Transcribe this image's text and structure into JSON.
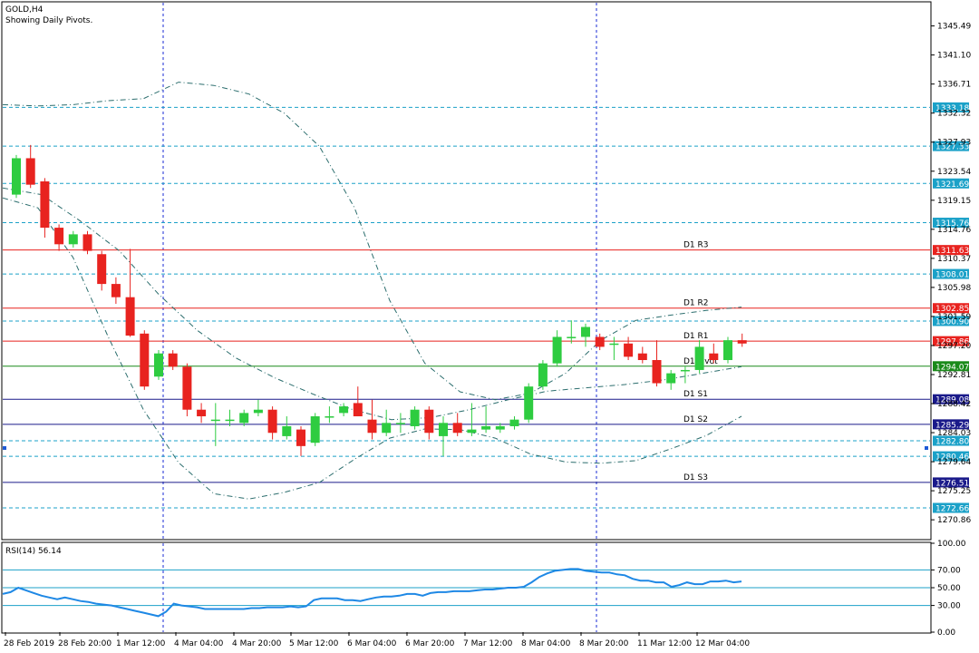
{
  "header": {
    "symbol": "GOLD,H4",
    "subtitle": "Showing Daily Pivots."
  },
  "rsi_label": "RSI(14) 56.14",
  "colors": {
    "bull": "#2ecc40",
    "bear": "#e8231f",
    "resistance": "#e8231f",
    "pivot": "#1a8a1a",
    "support": "#1a1a8a",
    "dotted_level": "#1ba1c8",
    "tag_cyan": "#1ba1c8",
    "rsi": "#1e88e5",
    "band": "#2c6e6e"
  },
  "chart_data": {
    "type": "candlestick",
    "ylim": [
      1268,
      1349
    ],
    "y_ticks": [
      "1345.49",
      "1341.10",
      "1336.71",
      "1332.32",
      "1327.93",
      "1323.54",
      "1319.15",
      "1314.76",
      "1310.37",
      "1305.98",
      "1301.59",
      "1297.20",
      "1292.81",
      "1288.42",
      "1284.03",
      "1279.64",
      "1275.25",
      "1270.86"
    ],
    "x_labels": [
      "28 Feb 2019",
      "28 Feb 20:00",
      "1 Mar 12:00",
      "4 Mar 04:00",
      "4 Mar 20:00",
      "5 Mar 12:00",
      "6 Mar 04:00",
      "6 Mar 20:00",
      "7 Mar 12:00",
      "8 Mar 04:00",
      "8 Mar 20:00",
      "11 Mar 12:00",
      "12 Mar 04:00"
    ],
    "candles": [
      {
        "o": 1320.0,
        "h": 1326.0,
        "l": 1319.5,
        "c": 1325.5
      },
      {
        "o": 1325.5,
        "h": 1327.5,
        "l": 1321.0,
        "c": 1321.5
      },
      {
        "o": 1322.0,
        "h": 1322.5,
        "l": 1313.5,
        "c": 1315.0
      },
      {
        "o": 1315.0,
        "h": 1315.5,
        "l": 1311.5,
        "c": 1312.5
      },
      {
        "o": 1312.5,
        "h": 1314.5,
        "l": 1312.0,
        "c": 1314.0
      },
      {
        "o": 1314.0,
        "h": 1314.5,
        "l": 1311.0,
        "c": 1311.5
      },
      {
        "o": 1311.0,
        "h": 1311.5,
        "l": 1305.5,
        "c": 1306.5
      },
      {
        "o": 1306.5,
        "h": 1307.5,
        "l": 1303.5,
        "c": 1304.5
      },
      {
        "o": 1304.5,
        "h": 1311.8,
        "l": 1298.5,
        "c": 1298.7
      },
      {
        "o": 1299.0,
        "h": 1299.5,
        "l": 1290.5,
        "c": 1291.0
      },
      {
        "o": 1292.5,
        "h": 1296.5,
        "l": 1292.0,
        "c": 1296.0
      },
      {
        "o": 1296.0,
        "h": 1296.5,
        "l": 1293.5,
        "c": 1294.0
      },
      {
        "o": 1294.0,
        "h": 1294.5,
        "l": 1286.5,
        "c": 1287.5
      },
      {
        "o": 1287.5,
        "h": 1288.5,
        "l": 1285.5,
        "c": 1286.5
      },
      {
        "o": 1286.0,
        "h": 1288.5,
        "l": 1282.0,
        "c": 1286.0
      },
      {
        "o": 1286.0,
        "h": 1287.5,
        "l": 1285.0,
        "c": 1286.0
      },
      {
        "o": 1285.5,
        "h": 1287.5,
        "l": 1285.0,
        "c": 1287.0
      },
      {
        "o": 1287.0,
        "h": 1289.0,
        "l": 1286.5,
        "c": 1287.5
      },
      {
        "o": 1287.5,
        "h": 1288.0,
        "l": 1283.0,
        "c": 1284.0
      },
      {
        "o": 1283.5,
        "h": 1286.5,
        "l": 1283.0,
        "c": 1285.0
      },
      {
        "o": 1284.5,
        "h": 1285.0,
        "l": 1280.5,
        "c": 1282.0
      },
      {
        "o": 1282.5,
        "h": 1287.0,
        "l": 1282.0,
        "c": 1286.5
      },
      {
        "o": 1286.5,
        "h": 1288.0,
        "l": 1285.5,
        "c": 1286.5
      },
      {
        "o": 1287.0,
        "h": 1288.5,
        "l": 1286.5,
        "c": 1288.0
      },
      {
        "o": 1288.5,
        "h": 1291.0,
        "l": 1286.5,
        "c": 1286.5
      },
      {
        "o": 1286.0,
        "h": 1289.0,
        "l": 1283.0,
        "c": 1284.0
      },
      {
        "o": 1284.0,
        "h": 1287.5,
        "l": 1283.5,
        "c": 1285.5
      },
      {
        "o": 1285.5,
        "h": 1287.0,
        "l": 1284.0,
        "c": 1285.5
      },
      {
        "o": 1285.0,
        "h": 1288.0,
        "l": 1284.5,
        "c": 1287.5
      },
      {
        "o": 1287.5,
        "h": 1288.0,
        "l": 1283.0,
        "c": 1284.0
      },
      {
        "o": 1283.5,
        "h": 1286.5,
        "l": 1280.5,
        "c": 1285.5
      },
      {
        "o": 1285.5,
        "h": 1287.0,
        "l": 1283.5,
        "c": 1284.0
      },
      {
        "o": 1284.0,
        "h": 1288.5,
        "l": 1283.5,
        "c": 1284.5
      },
      {
        "o": 1284.5,
        "h": 1288.0,
        "l": 1284.0,
        "c": 1285.0
      },
      {
        "o": 1284.5,
        "h": 1285.5,
        "l": 1284.0,
        "c": 1285.0
      },
      {
        "o": 1285.0,
        "h": 1286.5,
        "l": 1284.5,
        "c": 1286.0
      },
      {
        "o": 1286.0,
        "h": 1291.5,
        "l": 1285.5,
        "c": 1291.0
      },
      {
        "o": 1291.0,
        "h": 1295.0,
        "l": 1290.5,
        "c": 1294.5
      },
      {
        "o": 1294.5,
        "h": 1299.5,
        "l": 1294.0,
        "c": 1298.5
      },
      {
        "o": 1298.5,
        "h": 1301.0,
        "l": 1297.5,
        "c": 1298.5
      },
      {
        "o": 1298.5,
        "h": 1300.5,
        "l": 1297.0,
        "c": 1300.0
      },
      {
        "o": 1298.5,
        "h": 1299.0,
        "l": 1296.5,
        "c": 1297.0
      },
      {
        "o": 1297.5,
        "h": 1298.5,
        "l": 1295.0,
        "c": 1297.5
      },
      {
        "o": 1297.5,
        "h": 1298.5,
        "l": 1295.0,
        "c": 1295.5
      },
      {
        "o": 1296.0,
        "h": 1297.0,
        "l": 1294.5,
        "c": 1295.0
      },
      {
        "o": 1295.0,
        "h": 1298.0,
        "l": 1291.0,
        "c": 1291.5
      },
      {
        "o": 1291.5,
        "h": 1293.5,
        "l": 1290.5,
        "c": 1293.0
      },
      {
        "o": 1293.5,
        "h": 1294.0,
        "l": 1291.5,
        "c": 1293.5
      },
      {
        "o": 1293.5,
        "h": 1298.0,
        "l": 1293.0,
        "c": 1297.0
      },
      {
        "o": 1296.0,
        "h": 1297.5,
        "l": 1294.5,
        "c": 1295.0
      },
      {
        "o": 1295.0,
        "h": 1298.5,
        "l": 1294.5,
        "c": 1298.0
      },
      {
        "o": 1298.0,
        "h": 1299.0,
        "l": 1297.0,
        "c": 1297.5
      }
    ],
    "pivot_levels": [
      {
        "label": "D1 R3",
        "value": 1311.63,
        "kind": "resistance"
      },
      {
        "label": "D1 R2",
        "value": 1302.85,
        "kind": "resistance"
      },
      {
        "label": "D1 R1",
        "value": 1297.86,
        "kind": "resistance"
      },
      {
        "label": "D1 Pivot",
        "value": 1294.07,
        "kind": "pivot"
      },
      {
        "label": "D1 S1",
        "value": 1289.08,
        "kind": "support"
      },
      {
        "label": "D1 S2",
        "value": 1285.29,
        "kind": "support"
      },
      {
        "label": "D1 S3",
        "value": 1276.51,
        "kind": "support"
      }
    ],
    "dotted_levels": [
      1333.18,
      1327.33,
      1321.69,
      1315.76,
      1308.01,
      1300.9,
      1282.8,
      1280.46,
      1272.66
    ],
    "price_tags": [
      {
        "text": "1333.18",
        "value": 1333.18,
        "kind": "level"
      },
      {
        "text": "1327.33",
        "value": 1327.33,
        "kind": "level"
      },
      {
        "text": "1321.69",
        "value": 1321.69,
        "kind": "level"
      },
      {
        "text": "1315.76",
        "value": 1315.76,
        "kind": "level"
      },
      {
        "text": "1311.63",
        "value": 1311.63,
        "kind": "resistance"
      },
      {
        "text": "1308.01",
        "value": 1308.01,
        "kind": "level"
      },
      {
        "text": "1302.85",
        "value": 1302.85,
        "kind": "resistance"
      },
      {
        "text": "1300.90",
        "value": 1300.9,
        "kind": "level"
      },
      {
        "text": "1297.86",
        "value": 1297.86,
        "kind": "resistance"
      },
      {
        "text": "1294.07",
        "value": 1294.07,
        "kind": "pivot"
      },
      {
        "text": "1289.08",
        "value": 1289.08,
        "kind": "support"
      },
      {
        "text": "1285.29",
        "value": 1285.29,
        "kind": "support"
      },
      {
        "text": "1282.80",
        "value": 1282.8,
        "kind": "level"
      },
      {
        "text": "1280.46",
        "value": 1280.46,
        "kind": "level"
      },
      {
        "text": "1276.51",
        "value": 1276.51,
        "kind": "support"
      },
      {
        "text": "1272.66",
        "value": 1272.66,
        "kind": "level"
      }
    ],
    "bands": {
      "upper": [
        1333.6,
        1333.4,
        1333.6,
        1334.2,
        1334.5,
        1337.0,
        1336.5,
        1335.2,
        1332.3,
        1327.3,
        1318.0,
        1304.0,
        1294.5,
        1290.2,
        1289.0,
        1290.0,
        1293.0,
        1298.0,
        1301.0,
        1301.8,
        1302.5,
        1303.0
      ],
      "middle": [
        1321.0,
        1320.0,
        1316.0,
        1311.5,
        1305.0,
        1299.5,
        1295.3,
        1292.3,
        1289.8,
        1287.5,
        1286.0,
        1286.3,
        1287.5,
        1289.0,
        1290.3,
        1290.8,
        1291.3,
        1292.0,
        1293.0,
        1294.0
      ],
      "lower": [
        1319.5,
        1318.0,
        1310.5,
        1298.5,
        1287.5,
        1279.5,
        1274.8,
        1274.0,
        1275.0,
        1276.5,
        1280.0,
        1283.2,
        1284.6,
        1284.5,
        1283.2,
        1280.8,
        1279.6,
        1279.4,
        1279.8,
        1281.6,
        1283.6,
        1286.5
      ]
    },
    "vertical_markers": [
      "1 Mar 12:00",
      "8 Mar 20:00"
    ],
    "rsi": {
      "label": "RSI(14) 56.14",
      "ylim": [
        0,
        100
      ],
      "ticks": [
        "100.00",
        "70.00",
        "50.00",
        "30.00",
        "0.00"
      ],
      "levels": [
        70,
        50,
        30
      ],
      "values": [
        43,
        45,
        50,
        47,
        44,
        41,
        39,
        37,
        39,
        37,
        35,
        34,
        32,
        31,
        30,
        28,
        26,
        24,
        22,
        20,
        18,
        23,
        32,
        30,
        29,
        28,
        26,
        26,
        26,
        26,
        26,
        26,
        27,
        27,
        28,
        28,
        28,
        29,
        28,
        29,
        36,
        38,
        38,
        38,
        36,
        36,
        35,
        37,
        39,
        40,
        40,
        41,
        43,
        43,
        41,
        44,
        45,
        45,
        46,
        46,
        46,
        47,
        48,
        48,
        49,
        50,
        50,
        51,
        56,
        62,
        66,
        69,
        70,
        71,
        71,
        69,
        68,
        67,
        67,
        65,
        64,
        60,
        58,
        58,
        56,
        56,
        51,
        53,
        56,
        54,
        54,
        57,
        57,
        58,
        56,
        57
      ]
    }
  }
}
